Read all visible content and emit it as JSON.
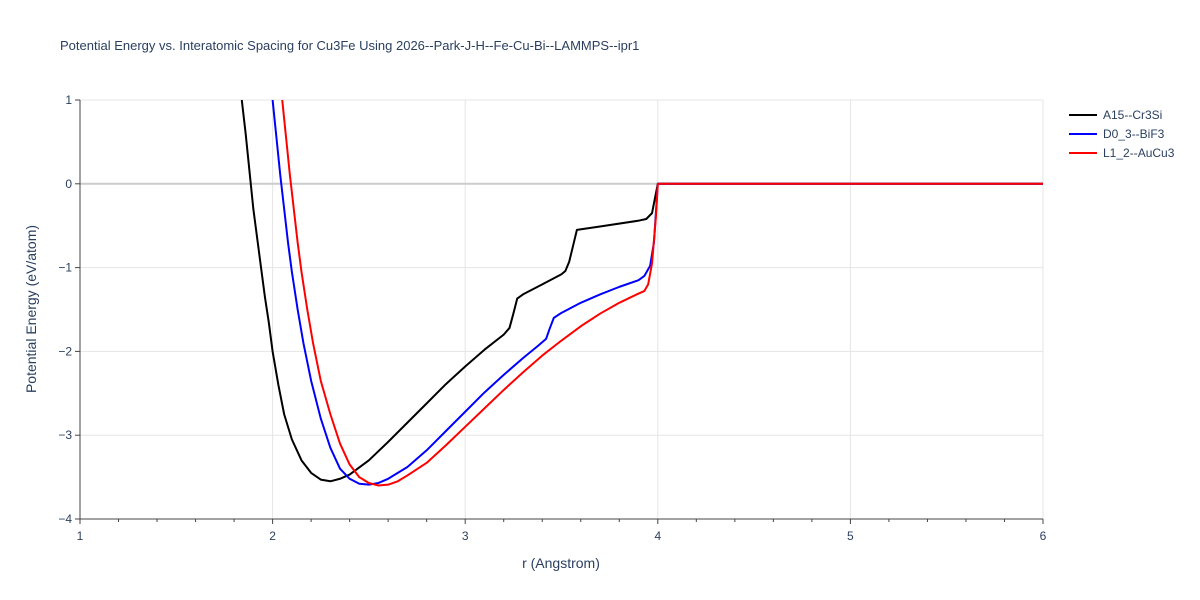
{
  "chart_data": {
    "type": "line",
    "title": "Potential Energy vs. Interatomic Spacing for Cu3Fe Using 2026--Park-J-H--Fe-Cu-Bi--LAMMPS--ipr1",
    "xlabel": "r (Angstrom)",
    "ylabel": "Potential Energy (eV/atom)",
    "xlim": [
      1,
      6
    ],
    "ylim": [
      -4,
      1
    ],
    "xticks": [
      1,
      2,
      3,
      4,
      5,
      6
    ],
    "xtick_labels": [
      "1",
      "2",
      "3",
      "4",
      "5",
      "6"
    ],
    "yticks": [
      1,
      0,
      -1,
      -2,
      -3,
      -4
    ],
    "ytick_labels": [
      "1",
      "0",
      "−1",
      "−2",
      "−3",
      "−4"
    ],
    "grid": true,
    "legend_position": "top-right",
    "series": [
      {
        "name": "A15--Cr3Si",
        "color": "#000000",
        "x": [
          1.84,
          1.86,
          1.88,
          1.9,
          1.92,
          1.94,
          1.96,
          1.98,
          2.0,
          2.03,
          2.06,
          2.1,
          2.15,
          2.2,
          2.25,
          2.3,
          2.35,
          2.4,
          2.5,
          2.6,
          2.7,
          2.8,
          2.9,
          3.0,
          3.1,
          3.2,
          3.23,
          3.25,
          3.27,
          3.3,
          3.4,
          3.5,
          3.52,
          3.54,
          3.56,
          3.58,
          3.7,
          3.9,
          3.94,
          3.97,
          4.0,
          4.5,
          5.0,
          5.5,
          6.0
        ],
        "y": [
          1.0,
          0.6,
          0.15,
          -0.3,
          -0.65,
          -1.0,
          -1.35,
          -1.65,
          -2.0,
          -2.4,
          -2.75,
          -3.05,
          -3.3,
          -3.45,
          -3.53,
          -3.55,
          -3.52,
          -3.47,
          -3.3,
          -3.08,
          -2.85,
          -2.62,
          -2.39,
          -2.18,
          -1.98,
          -1.8,
          -1.72,
          -1.55,
          -1.37,
          -1.32,
          -1.2,
          -1.08,
          -1.04,
          -0.93,
          -0.74,
          -0.55,
          -0.51,
          -0.44,
          -0.42,
          -0.35,
          0.0,
          0.0,
          0.0,
          0.0,
          0.0
        ]
      },
      {
        "name": "D0_3--BiF3",
        "color": "#0000ff",
        "x": [
          2.0,
          2.02,
          2.04,
          2.06,
          2.08,
          2.1,
          2.13,
          2.16,
          2.2,
          2.25,
          2.3,
          2.35,
          2.4,
          2.45,
          2.5,
          2.55,
          2.6,
          2.7,
          2.8,
          2.9,
          3.0,
          3.1,
          3.2,
          3.3,
          3.38,
          3.42,
          3.44,
          3.46,
          3.5,
          3.6,
          3.7,
          3.8,
          3.9,
          3.93,
          3.96,
          3.98,
          4.0,
          4.5,
          5.0,
          5.5,
          6.0
        ],
        "y": [
          1.0,
          0.55,
          0.1,
          -0.3,
          -0.7,
          -1.05,
          -1.5,
          -1.9,
          -2.35,
          -2.8,
          -3.15,
          -3.4,
          -3.52,
          -3.58,
          -3.59,
          -3.57,
          -3.52,
          -3.38,
          -3.18,
          -2.95,
          -2.72,
          -2.49,
          -2.28,
          -2.08,
          -1.93,
          -1.85,
          -1.72,
          -1.6,
          -1.54,
          -1.42,
          -1.32,
          -1.23,
          -1.15,
          -1.1,
          -0.98,
          -0.7,
          0.0,
          0.0,
          0.0,
          0.0,
          0.0
        ]
      },
      {
        "name": "L1_2--AuCu3",
        "color": "#ff0000",
        "x": [
          2.05,
          2.07,
          2.09,
          2.11,
          2.13,
          2.15,
          2.18,
          2.21,
          2.25,
          2.3,
          2.35,
          2.4,
          2.45,
          2.5,
          2.55,
          2.6,
          2.65,
          2.7,
          2.8,
          2.9,
          3.0,
          3.1,
          3.2,
          3.3,
          3.4,
          3.5,
          3.6,
          3.7,
          3.8,
          3.9,
          3.93,
          3.95,
          3.97,
          3.99,
          4.0,
          4.5,
          5.0,
          5.5,
          6.0
        ],
        "y": [
          1.0,
          0.55,
          0.1,
          -0.3,
          -0.7,
          -1.05,
          -1.5,
          -1.9,
          -2.35,
          -2.75,
          -3.1,
          -3.35,
          -3.5,
          -3.57,
          -3.6,
          -3.59,
          -3.55,
          -3.48,
          -3.33,
          -3.12,
          -2.9,
          -2.68,
          -2.46,
          -2.25,
          -2.05,
          -1.87,
          -1.7,
          -1.55,
          -1.42,
          -1.31,
          -1.28,
          -1.2,
          -0.95,
          -0.4,
          0.0,
          0.0,
          0.0,
          0.0,
          0.0
        ]
      }
    ]
  }
}
